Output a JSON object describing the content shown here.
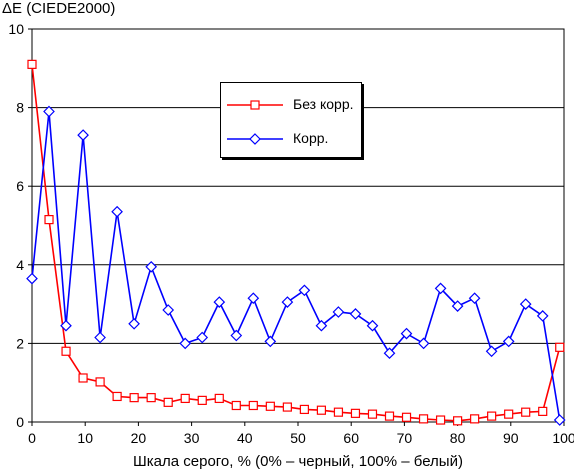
{
  "chart_data": {
    "type": "line",
    "title": "ΔE (CIEDE2000)",
    "xlabel": "Шкала серого, % (0% – черный, 100% – белый)",
    "ylabel": "",
    "xlim": [
      0,
      100
    ],
    "ylim": [
      0,
      10
    ],
    "xticks": [
      0,
      10,
      20,
      30,
      40,
      50,
      60,
      70,
      80,
      90,
      100
    ],
    "yticks": [
      0,
      2,
      4,
      6,
      8,
      10
    ],
    "grid": "horizontal",
    "legend_position": "center-top",
    "x": [
      0,
      3.2,
      6.4,
      9.6,
      12.8,
      16,
      19.2,
      22.4,
      25.6,
      28.8,
      32,
      35.2,
      38.4,
      41.6,
      44.8,
      48,
      51.2,
      54.4,
      57.6,
      60.8,
      64,
      67.2,
      70.4,
      73.6,
      76.8,
      80,
      83.2,
      86.4,
      89.6,
      92.8,
      96,
      99.2
    ],
    "series": [
      {
        "name": "Без корр.",
        "color": "#ff0000",
        "marker": "square",
        "values": [
          9.1,
          5.15,
          1.8,
          1.12,
          1.02,
          0.65,
          0.62,
          0.62,
          0.5,
          0.6,
          0.55,
          0.6,
          0.42,
          0.42,
          0.4,
          0.38,
          0.32,
          0.3,
          0.25,
          0.22,
          0.2,
          0.15,
          0.12,
          0.08,
          0.05,
          0.03,
          0.08,
          0.15,
          0.2,
          0.25,
          0.27,
          1.9
        ]
      },
      {
        "name": "Корр.",
        "color": "#0000ff",
        "marker": "diamond",
        "values": [
          3.65,
          7.9,
          2.45,
          7.3,
          2.15,
          5.35,
          2.5,
          3.95,
          2.85,
          2.0,
          2.15,
          3.05,
          2.2,
          3.15,
          2.05,
          3.05,
          3.35,
          2.45,
          2.8,
          2.75,
          2.45,
          1.75,
          2.25,
          2.0,
          3.4,
          2.95,
          3.15,
          1.8,
          2.05,
          3.0,
          2.7,
          0.05
        ]
      }
    ]
  }
}
